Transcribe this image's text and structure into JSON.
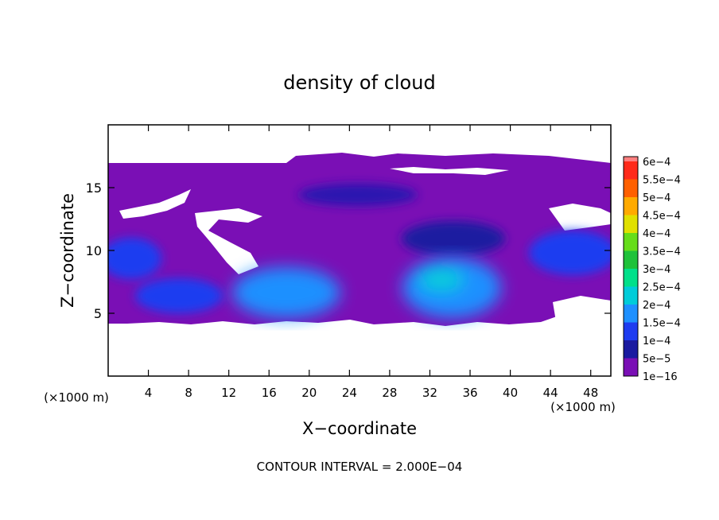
{
  "chart_data": {
    "type": "heatmap",
    "title": "density of cloud",
    "xlabel": "X−coordinate",
    "ylabel": "Z−coordinate",
    "x_unit_left": "(×1000 m)",
    "x_unit_right": "(×1000 m)",
    "footer": "CONTOUR INTERVAL = 2.000E−04",
    "xlim": [
      0,
      50
    ],
    "ylim": [
      0,
      20
    ],
    "x_ticks": [
      4,
      8,
      12,
      16,
      20,
      24,
      28,
      32,
      36,
      40,
      44,
      48
    ],
    "x_tick_labels": [
      "4",
      "8",
      "12",
      "16",
      "20",
      "24",
      "28",
      "32",
      "36",
      "40",
      "44",
      "48"
    ],
    "y_ticks": [
      5,
      10,
      15
    ],
    "y_tick_labels": [
      "5",
      "10",
      "15"
    ],
    "colorbar": {
      "labels": [
        "1e−16",
        "5e−5",
        "1e−4",
        "1.5e−4",
        "2e−4",
        "2.5e−4",
        "3e−4",
        "3.5e−4",
        "4e−4",
        "4.5e−4",
        "5e−4",
        "5.5e−4",
        "6e−4"
      ],
      "colors": [
        "#7a0fb5",
        "#1a1aa0",
        "#1e3cf0",
        "#1e90ff",
        "#00ccd9",
        "#00e08a",
        "#1fc23a",
        "#66dd1a",
        "#e0e000",
        "#ffaa00",
        "#ff6000",
        "#ff2a1a",
        "#ff8080"
      ]
    }
  }
}
